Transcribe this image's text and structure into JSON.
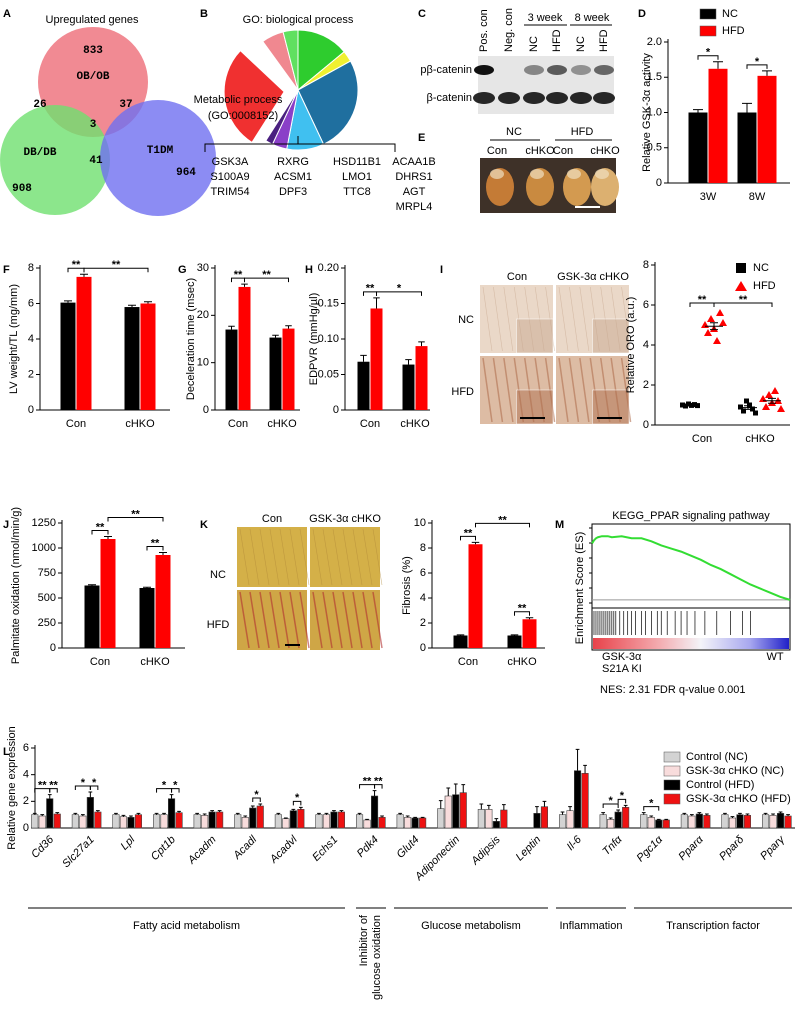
{
  "panel_labels": [
    "A",
    "B",
    "C",
    "D",
    "E",
    "F",
    "G",
    "H",
    "I",
    "J",
    "K",
    "L",
    "M"
  ],
  "venn": {
    "title": "Upregulated genes",
    "sets": [
      "OB/OB",
      "DB/DB",
      "T1DM"
    ],
    "counts": [
      833,
      26,
      37,
      3,
      908,
      41,
      964
    ]
  },
  "blot": {
    "lanes": [
      "Pos. con",
      "Neg. con",
      "NC",
      "HFD",
      "NC",
      "HFD"
    ],
    "timepoints": [
      "3 week",
      "8 week"
    ],
    "rows": [
      "pβ-catenin",
      "β-catenin"
    ]
  },
  "hearts": {
    "diets": [
      "NC",
      "HFD"
    ],
    "genotypes": [
      "Con",
      "cHKO",
      "Con",
      "cHKO"
    ]
  },
  "oro": {
    "columns": [
      "Con",
      "GSK-3α cHKO"
    ],
    "rows": [
      "NC",
      "HFD"
    ]
  },
  "fibrosis": {
    "columns": [
      "Con",
      "GSK-3α cHKO"
    ],
    "rows": [
      "NC",
      "HFD"
    ]
  },
  "chart_data": [
    {
      "type": "pie",
      "title": "GO: biological process",
      "values": [
        14,
        3,
        26,
        10,
        4,
        2,
        28,
        3,
        6,
        4
      ],
      "colors": [
        "#2ecc2e",
        "#f0f030",
        "#1f6f9f",
        "#40c0f0",
        "#8a3fc8",
        "#4a2080",
        "#f03030",
        "#ffffff",
        "#f08890",
        "#60e060"
      ],
      "annotation": [
        "Metabolic process",
        "(GO:0008152)"
      ],
      "genes": [
        [
          "GSK3A",
          "S100A9",
          "TRIM54"
        ],
        [
          "RXRG",
          "ACSM1",
          "DPF3"
        ],
        [
          "HSD11B1",
          "LMO1",
          "TTC8"
        ],
        [
          "ACAA1B",
          "DHRS1",
          "AGT",
          "MRPL4"
        ]
      ]
    },
    {
      "type": "bar",
      "ylabel": "Relative GSK-3α activity",
      "categories": [
        "3W",
        "8W"
      ],
      "ylim": [
        0,
        2
      ],
      "yticks": [
        0,
        0.5,
        {
          "value": 1,
          "label": "1.0"
        },
        1.5,
        {
          "value": 2,
          "label": "2.0"
        }
      ],
      "series": [
        {
          "name": "NC",
          "color": "#000000",
          "values": [
            1.0,
            1.0
          ],
          "errors": [
            0.04,
            0.13
          ]
        },
        {
          "name": "HFD",
          "color": "#ff0000",
          "values": [
            1.62,
            1.52
          ],
          "errors": [
            0.1,
            0.07
          ]
        }
      ],
      "significance": [
        "*",
        "*"
      ]
    },
    {
      "type": "bar",
      "ylabel": "LV weight/TL (mg/mm)",
      "categories": [
        "Con",
        "cHKO"
      ],
      "ylim": [
        0,
        8
      ],
      "yticks": [
        0,
        2,
        4,
        6,
        8
      ],
      "series": [
        {
          "color": "#000000",
          "values": [
            6.05,
            5.8
          ],
          "errors": [
            0.1,
            0.1
          ]
        },
        {
          "color": "#ff0000",
          "values": [
            7.5,
            6.0
          ],
          "errors": [
            0.15,
            0.1
          ]
        }
      ],
      "significance": [
        "**",
        "**"
      ]
    },
    {
      "type": "bar",
      "ylabel": "Deceleration time (msec)",
      "categories": [
        "Con",
        "cHKO"
      ],
      "ylim": [
        0,
        30
      ],
      "yticks": [
        0,
        10,
        20,
        30
      ],
      "series": [
        {
          "color": "#000000",
          "values": [
            17,
            15.3
          ],
          "errors": [
            0.7,
            0.5
          ]
        },
        {
          "color": "#ff0000",
          "values": [
            26,
            17.2
          ],
          "errors": [
            0.6,
            0.6
          ]
        }
      ],
      "significance": [
        "**",
        "**"
      ]
    },
    {
      "type": "bar",
      "ylabel": "EDPVR (mmHg/µl)",
      "categories": [
        "Con",
        "cHKO"
      ],
      "ylim": [
        0,
        0.2
      ],
      "yticks": [
        0,
        0.05,
        {
          "value": 0.1,
          "label": "0.10"
        },
        0.15,
        {
          "value": 0.2,
          "label": "0.20"
        }
      ],
      "series": [
        {
          "color": "#000000",
          "values": [
            0.068,
            0.064
          ],
          "errors": [
            0.009,
            0.007
          ]
        },
        {
          "color": "#ff0000",
          "values": [
            0.143,
            0.09
          ],
          "errors": [
            0.015,
            0.006
          ]
        }
      ],
      "significance": [
        "**",
        "*"
      ]
    },
    {
      "type": "scatter",
      "ylabel": "Relative ORO (a.u.)",
      "categories": [
        "Con",
        "cHKO"
      ],
      "ylim": [
        0,
        8
      ],
      "yticks": [
        0,
        2,
        4,
        6,
        8
      ],
      "series": [
        {
          "name": "NC",
          "color": "#000000",
          "marker": "square",
          "values": [
            [
              1.0,
              0.95,
              1.05,
              0.98,
              1.02,
              0.97
            ],
            [
              0.9,
              0.7,
              1.2,
              1.0,
              0.8,
              0.6
            ]
          ],
          "means": [
            1.0,
            0.87
          ],
          "errors": [
            0.02,
            0.09
          ]
        },
        {
          "name": "HFD",
          "color": "#ff0000",
          "marker": "triangle",
          "values": [
            [
              5.0,
              4.6,
              5.3,
              4.8,
              4.2,
              5.6,
              5.1
            ],
            [
              1.3,
              0.9,
              1.5,
              1.1,
              1.7,
              1.2,
              0.8
            ]
          ],
          "means": [
            4.94,
            1.21
          ],
          "errors": [
            0.17,
            0.12
          ]
        }
      ],
      "significance": [
        "**",
        "**"
      ]
    },
    {
      "type": "bar",
      "ylabel": "Palmitate oxidation (nmol/min/g)",
      "categories": [
        "Con",
        "cHKO"
      ],
      "ylim": [
        0,
        1250
      ],
      "yticks": [
        0,
        250,
        500,
        750,
        1000,
        1250
      ],
      "series": [
        {
          "color": "#000000",
          "values": [
            625,
            600
          ],
          "errors": [
            8,
            8
          ]
        },
        {
          "color": "#ff0000",
          "values": [
            1090,
            930
          ],
          "errors": [
            25,
            25
          ]
        }
      ],
      "significance": [
        "**",
        "**",
        "**"
      ]
    },
    {
      "type": "bar",
      "ylabel": "Fibrosis (%)",
      "categories": [
        "Con",
        "cHKO"
      ],
      "ylim": [
        0,
        10
      ],
      "yticks": [
        0,
        2,
        4,
        6,
        8,
        10
      ],
      "series": [
        {
          "color": "#000000",
          "values": [
            1.0,
            1.0
          ],
          "errors": [
            0.05,
            0.05
          ]
        },
        {
          "color": "#ff0000",
          "values": [
            8.3,
            2.3
          ],
          "errors": [
            0.15,
            0.12
          ]
        }
      ],
      "significance": [
        "**",
        "**",
        "**"
      ]
    },
    {
      "type": "line",
      "title": "KEGG_PPAR signaling pathway",
      "ylabel": "Enrichment Score (ES)",
      "color": "#33dd33",
      "x": [
        0,
        1,
        2,
        3,
        5,
        8,
        10,
        15,
        20,
        25,
        30,
        35,
        40,
        45,
        50,
        55,
        60,
        65,
        70,
        75,
        80,
        85,
        90,
        95,
        100
      ],
      "values": [
        0.55,
        0.58,
        0.6,
        0.61,
        0.62,
        0.62,
        0.61,
        0.62,
        0.6,
        0.6,
        0.57,
        0.53,
        0.5,
        0.47,
        0.43,
        0.39,
        0.34,
        0.3,
        0.25,
        0.2,
        0.15,
        0.11,
        0.07,
        0.03,
        0.0
      ],
      "xlim": [
        0,
        100
      ],
      "ylim": [
        -0.05,
        0.7
      ],
      "hits": [
        1,
        2,
        3,
        4,
        5,
        6,
        7,
        8,
        9,
        10,
        11,
        12,
        14,
        16,
        18,
        20,
        22,
        25,
        27,
        30,
        33,
        35,
        38,
        42,
        45,
        48,
        52,
        57,
        63,
        70,
        76,
        80
      ],
      "phenotype_left": [
        "GSK-3α",
        "S21A KI"
      ],
      "phenotype_right": "WT",
      "stats": "NES: 2.31 FDR q-value 0.001"
    },
    {
      "type": "bar",
      "ylabel": "Relative gene expression",
      "ylim": [
        0,
        6
      ],
      "yticks": [
        0,
        2,
        4,
        6
      ],
      "categories": [
        "Cd36",
        "Slc27a1",
        "Lpl",
        "Cpt1b",
        "Acadm",
        "Acadl",
        "Acadvl",
        "Echs1",
        "Pdk4",
        "Glut4",
        "Adiponectin",
        "Adipsis",
        "Leptin",
        "Il-6",
        "Tnfα",
        "Pgc1α",
        "Pparα",
        "Pparδ",
        "Pparγ"
      ],
      "series": [
        {
          "name": "Control (NC)",
          "color": "#d3d3d3",
          "values": [
            1.0,
            1.0,
            1.0,
            1.0,
            1.0,
            1.0,
            1.0,
            1.0,
            1.0,
            1.0,
            1.45,
            1.4,
            null,
            1.0,
            1.0,
            1.0,
            1.0,
            1.0,
            1.0
          ],
          "errors": [
            0.1,
            0.1,
            0.1,
            0.1,
            0.1,
            0.1,
            0.1,
            0.1,
            0.1,
            0.1,
            0.6,
            0.4,
            null,
            0.2,
            0.15,
            0.15,
            0.1,
            0.1,
            0.1
          ]
        },
        {
          "name": "GSK-3α cHKO (NC)",
          "color": "#f8dcdc",
          "values": [
            0.9,
            0.9,
            0.85,
            1.0,
            0.95,
            0.8,
            0.7,
            1.0,
            0.6,
            0.8,
            2.4,
            1.4,
            null,
            1.3,
            0.65,
            0.8,
            0.9,
            0.75,
            0.95
          ],
          "errors": [
            0.1,
            0.1,
            0.1,
            0.1,
            0.1,
            0.1,
            0.05,
            0.1,
            0.05,
            0.1,
            0.6,
            0.3,
            null,
            0.3,
            0.1,
            0.1,
            0.1,
            0.1,
            0.1
          ]
        },
        {
          "name": "Control (HFD)",
          "color": "#000000",
          "values": [
            2.2,
            2.3,
            0.8,
            2.2,
            1.2,
            1.5,
            1.3,
            1.2,
            2.4,
            0.75,
            2.5,
            0.5,
            1.1,
            4.3,
            1.2,
            0.6,
            1.05,
            1.0,
            1.1
          ],
          "errors": [
            0.3,
            0.4,
            0.1,
            0.3,
            0.1,
            0.15,
            0.1,
            0.1,
            0.4,
            0.05,
            0.8,
            0.2,
            0.5,
            1.6,
            0.15,
            0.05,
            0.1,
            0.1,
            0.1
          ]
        },
        {
          "name": "GSK-3α cHKO (HFD)",
          "color": "#ee1111",
          "values": [
            1.05,
            1.2,
            1.0,
            1.15,
            1.2,
            1.65,
            1.4,
            1.2,
            0.8,
            0.75,
            2.65,
            1.35,
            1.6,
            4.1,
            1.55,
            0.6,
            0.95,
            0.95,
            0.9
          ],
          "errors": [
            0.1,
            0.1,
            0.1,
            0.1,
            0.1,
            0.15,
            0.15,
            0.1,
            0.1,
            0.05,
            0.6,
            0.4,
            0.4,
            0.6,
            0.15,
            0.05,
            0.1,
            0.1,
            0.1
          ]
        }
      ],
      "significance": [
        "**",
        "**",
        "*",
        "*",
        "*",
        "*",
        "*",
        "*",
        "**",
        "**",
        "*",
        "*",
        "*"
      ],
      "groups": [
        [
          "Fatty acid metabolism"
        ],
        [
          "Inhibitor of",
          "glucose oxidation"
        ],
        [
          "Glucose metabolism"
        ],
        [
          "Inflammation"
        ],
        [
          "Transcription factor"
        ]
      ]
    }
  ]
}
